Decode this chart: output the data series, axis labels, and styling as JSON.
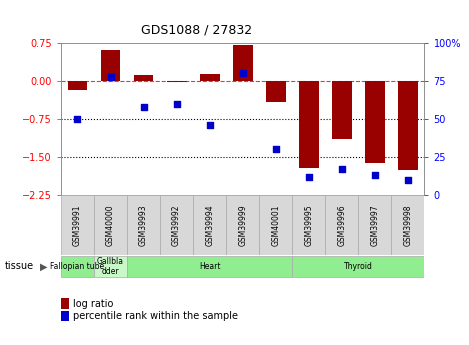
{
  "title": "GDS1088 / 27832",
  "samples": [
    "GSM39991",
    "GSM40000",
    "GSM39993",
    "GSM39992",
    "GSM39994",
    "GSM39999",
    "GSM40001",
    "GSM39995",
    "GSM39996",
    "GSM39997",
    "GSM39998"
  ],
  "log_ratios": [
    -0.18,
    0.62,
    0.12,
    -0.02,
    0.14,
    0.72,
    -0.42,
    -1.72,
    -1.15,
    -1.62,
    -1.75
  ],
  "percentile_ranks": [
    50,
    78,
    58,
    60,
    46,
    80,
    30,
    12,
    17,
    13,
    10
  ],
  "tissues": [
    {
      "label": "Fallopian tube",
      "start": 0,
      "end": 1,
      "color": "#90ee90"
    },
    {
      "label": "Gallbla\ndder",
      "start": 1,
      "end": 2,
      "color": "#c8f8c8"
    },
    {
      "label": "Heart",
      "start": 2,
      "end": 7,
      "color": "#90ee90"
    },
    {
      "label": "Thyroid",
      "start": 7,
      "end": 11,
      "color": "#90ee90"
    }
  ],
  "bar_color": "#990000",
  "dot_color": "#0000cc",
  "ylim_left": [
    -2.25,
    0.75
  ],
  "ylim_right": [
    0,
    100
  ],
  "yticks_left": [
    0.75,
    0.0,
    -0.75,
    -1.5,
    -2.25
  ],
  "yticks_right": [
    100,
    75,
    50,
    25,
    0
  ],
  "hline_dash": 0.0,
  "hlines_dot": [
    -0.75,
    -1.5
  ],
  "bar_width": 0.6,
  "legend_bar_label": "log ratio",
  "legend_dot_label": "percentile rank within the sample",
  "tissue_label": "tissue",
  "background_color": "#ffffff",
  "plot_bg_color": "#ffffff",
  "xticklabel_bg": "#d8d8d8",
  "xticklabel_border": "#aaaaaa"
}
